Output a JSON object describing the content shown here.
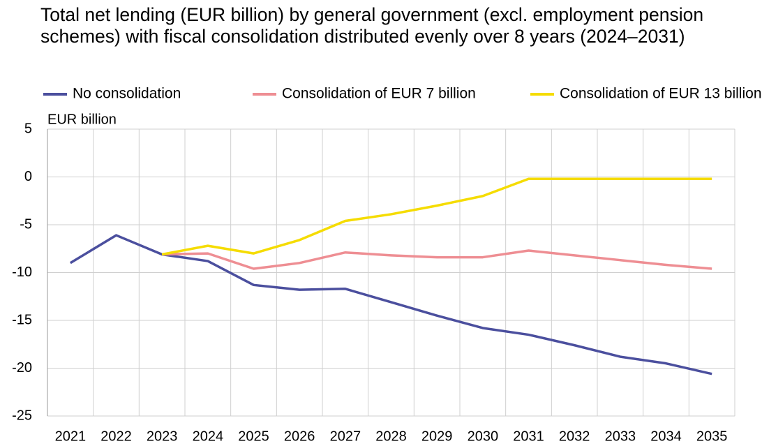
{
  "chart_data": {
    "type": "line",
    "title": "Total net lending (EUR billion) by general government (excl. employment pension schemes) with fiscal consolidation distributed evenly over 8 years (2024–2031)",
    "y_axis_label": "EUR billion",
    "categories": [
      "2021",
      "2022",
      "2023",
      "2024",
      "2025",
      "2026",
      "2027",
      "2028",
      "2029",
      "2030",
      "2031",
      "2032",
      "2033",
      "2034",
      "2035"
    ],
    "series": [
      {
        "name": "No consolidation",
        "color": "#4b4f9e",
        "values": [
          -9.0,
          -6.1,
          -8.1,
          -8.8,
          -11.3,
          -11.8,
          -11.7,
          -13.1,
          -14.5,
          -15.8,
          -16.5,
          -17.6,
          -18.8,
          -19.5,
          -20.6
        ]
      },
      {
        "name": "Consolidation of EUR 7 billion",
        "color": "#ee8e93",
        "values": [
          null,
          null,
          -8.1,
          -8.0,
          -9.6,
          -9.0,
          -7.9,
          -8.2,
          -8.4,
          -8.4,
          -7.7,
          -8.2,
          -8.7,
          -9.2,
          -9.6
        ]
      },
      {
        "name": "Consolidation of EUR 13 billion",
        "color": "#f5dc00",
        "values": [
          null,
          null,
          -8.1,
          -7.2,
          -8.0,
          -6.6,
          -4.6,
          -3.9,
          -3.0,
          -2.0,
          -0.2,
          -0.2,
          -0.2,
          -0.2,
          -0.2
        ]
      }
    ],
    "ylim": [
      -25,
      5
    ],
    "yticks": [
      5,
      0,
      -5,
      -10,
      -15,
      -20,
      -25
    ],
    "grid": true,
    "legend": "top"
  }
}
